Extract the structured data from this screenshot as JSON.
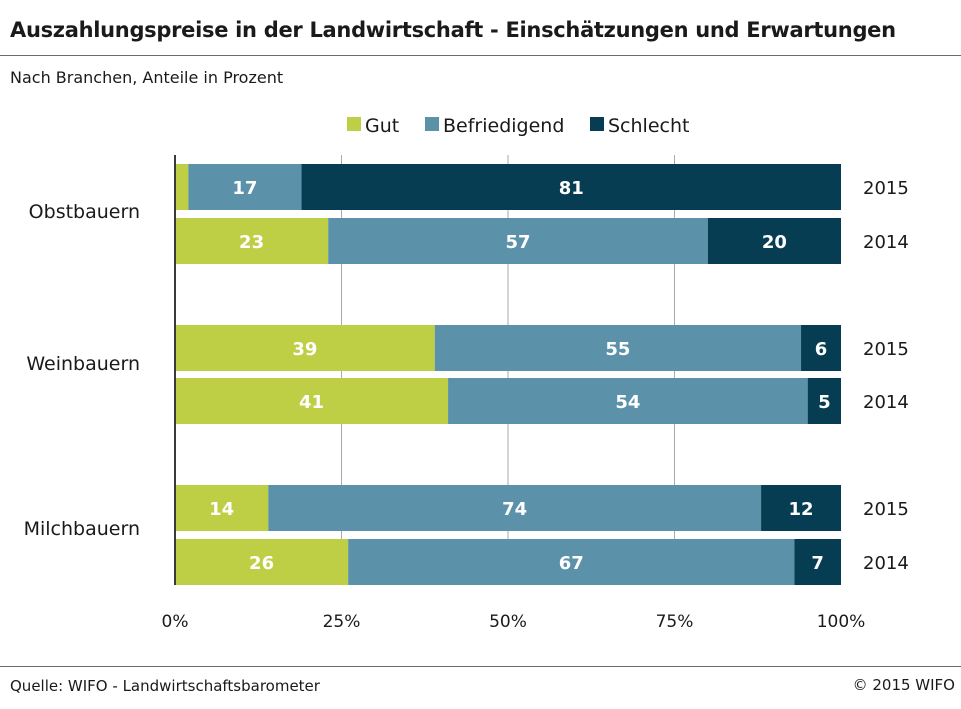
{
  "header": {
    "title": "Auszahlungspreise in der Landwirtschaft - Einschätzungen und Erwartungen",
    "subtitle": "Nach Branchen, Anteile in Prozent"
  },
  "footer": {
    "source": "Quelle: WIFO - Landwirtschaftsbarometer",
    "copyright": "© 2015 WIFO"
  },
  "colors": {
    "gut": "#bfcf45",
    "befriedigend": "#5b92aa",
    "schlecht": "#073d52",
    "grid": "#a9a9a9",
    "axis": "#3a3a3a"
  },
  "chart_data": {
    "type": "bar",
    "orientation": "horizontal",
    "stacked": true,
    "title": "Auszahlungspreise in der Landwirtschaft - Einschätzungen und Erwartungen",
    "subtitle": "Nach Branchen, Anteile in Prozent",
    "legend": {
      "position": "top",
      "entries": [
        "Gut",
        "Befriedigend",
        "Schlecht"
      ]
    },
    "xlim": [
      0,
      100
    ],
    "xticks": [
      "0%",
      "25%",
      "50%",
      "75%",
      "100%"
    ],
    "grid": true,
    "groups": [
      {
        "name": "Obstbauern",
        "bars": [
          {
            "year": "2015",
            "values": [
              2,
              17,
              81
            ],
            "labels": [
              "",
              "17",
              "81"
            ]
          },
          {
            "year": "2014",
            "values": [
              23,
              57,
              20
            ],
            "labels": [
              "23",
              "57",
              "20"
            ]
          }
        ]
      },
      {
        "name": "Weinbauern",
        "bars": [
          {
            "year": "2015",
            "values": [
              39,
              55,
              6
            ],
            "labels": [
              "39",
              "55",
              "6"
            ]
          },
          {
            "year": "2014",
            "values": [
              41,
              54,
              5
            ],
            "labels": [
              "41",
              "54",
              "5"
            ]
          }
        ]
      },
      {
        "name": "Milchbauern",
        "bars": [
          {
            "year": "2015",
            "values": [
              14,
              74,
              12
            ],
            "labels": [
              "14",
              "74",
              "12"
            ]
          },
          {
            "year": "2014",
            "values": [
              26,
              67,
              7
            ],
            "labels": [
              "26",
              "67",
              "7"
            ]
          }
        ]
      }
    ]
  }
}
